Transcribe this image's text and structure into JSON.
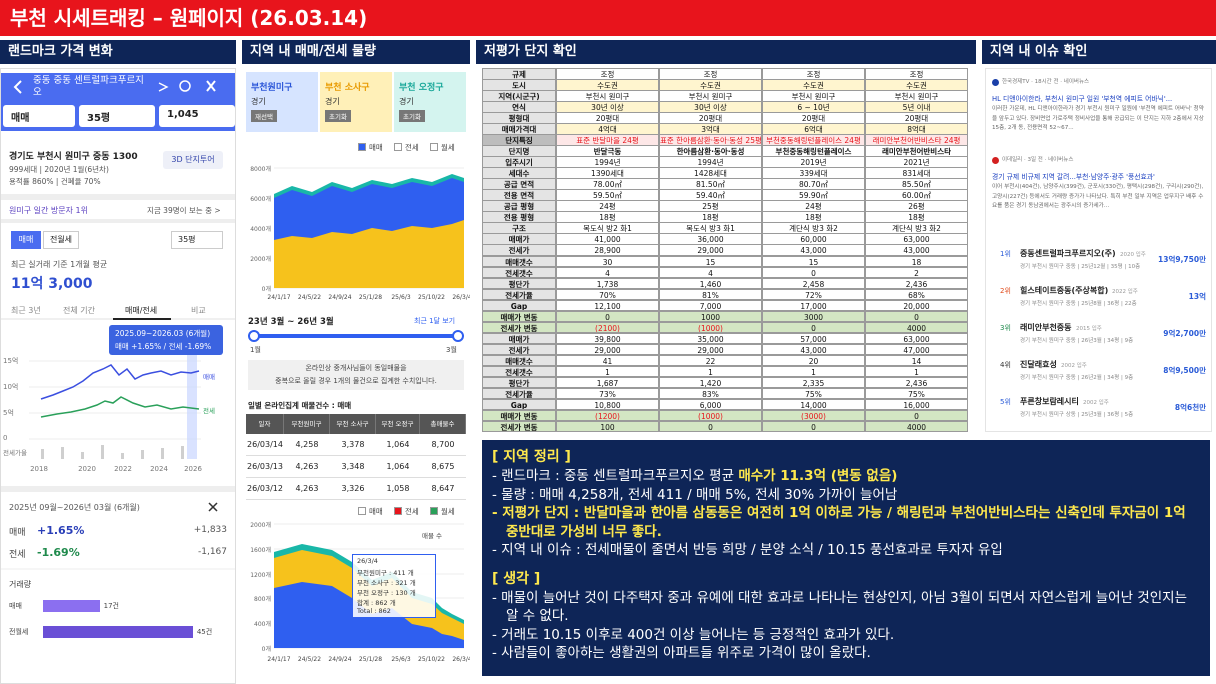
{
  "header": {
    "title": "부천 시세트래킹 – 원페이지 (26.03.14)"
  },
  "sections": [
    "랜드마크 가격 변화",
    "지역 내 매매/전세 물량",
    "저평가 단지 확인",
    "지역 내 이슈 확인"
  ],
  "landmark": {
    "app_title": "중동 중동 센트럴파크푸르지오",
    "filters": [
      "매매",
      "35평",
      "1,045"
    ],
    "address": "경기도 부천시 원미구 중동 1300",
    "info1": "999세대 | 2020년 1월(6년차)",
    "info2": "용적률 860% | 건폐율 70%",
    "tour": "3D 단지투어",
    "visitor": "원미구 일간 방문자 1위",
    "watching": "지금 39명이 보는 중 >",
    "tabs": [
      "매매",
      "전월세"
    ],
    "size": "35평",
    "avg_label": "최근 실거래 기준 1개월 평균",
    "avg_price": "11억 3,000",
    "chart_tabs": [
      "최근 3년",
      "전체 기간",
      "매매/전세",
      "비교"
    ],
    "tooltip": [
      "2025.09~2026.03 (6개월)",
      "매매 +1.65% / 전세 -1.69%"
    ],
    "yticks": [
      "15억",
      "10억",
      "5억",
      "0"
    ],
    "ratio_label": "전세가율",
    "xticks": [
      "2018",
      "2020",
      "2022",
      "2024",
      "2026"
    ],
    "line_labels": [
      "매매",
      "전세"
    ],
    "period": "2025년 09월~2026년 03월 (6개월)",
    "changes": [
      {
        "name": "매매",
        "pct": "+1.65%",
        "amount": "+1,833"
      },
      {
        "name": "전세",
        "pct": "-1.69%",
        "amount": "-1,167"
      }
    ],
    "volume_title": "거래량",
    "volume": [
      {
        "name": "매매",
        "value": 17,
        "label": "17건"
      },
      {
        "name": "전월세",
        "value": 45,
        "label": "45건"
      }
    ]
  },
  "supply": {
    "regions": [
      {
        "name": "부천원미구",
        "sub": "경기",
        "btn": "재선택"
      },
      {
        "name": "부천 소사구",
        "sub": "경기",
        "btn": "초기화"
      },
      {
        "name": "부천 오정구",
        "sub": "경기",
        "btn": "초기화"
      }
    ],
    "legend": [
      "매매",
      "전세",
      "월세"
    ],
    "chart1": {
      "yticks": [
        "8000개",
        "6000개",
        "4000개",
        "2000개",
        "0개"
      ],
      "xticks": [
        "24/1/17",
        "24/5/22",
        "24/9/24",
        "25/1/28",
        "25/6/3",
        "25/10/22",
        "26/3/4"
      ]
    },
    "range": "23년 3월 ~ 26년 3월",
    "recent": "최근 1달 보기",
    "slider_labels": [
      "1월",
      "3월"
    ],
    "notice": [
      "온라인상 중개사님들이 동일매물을",
      "중복으로 올릴 경우 1개의 물건으로 집계한 수치입니다."
    ],
    "table_title": "일별 온라인집계 매물건수 : 매매",
    "table_header": [
      "일자",
      "부천원미구",
      "부천 소사구",
      "부천 오정구",
      "총매물수"
    ],
    "table_rows": [
      [
        "26/03/14",
        "4,258",
        "3,378",
        "1,064",
        "8,700"
      ],
      [
        "26/03/13",
        "4,263",
        "3,348",
        "1,064",
        "8,675"
      ],
      [
        "26/03/12",
        "4,263",
        "3,326",
        "1,058",
        "8,647"
      ]
    ],
    "legend2": [
      "매매",
      "전세",
      "월세"
    ],
    "chart2": {
      "yticks": [
        "2000개",
        "1600개",
        "1200개",
        "800개",
        "400개",
        "0개"
      ],
      "xticks": [
        "24/1/17",
        "24/5/22",
        "24/9/24",
        "25/1/28",
        "25/6/3",
        "25/10/22",
        "26/3/4"
      ],
      "label": "매물 수",
      "tooltip": [
        "26/3/4",
        "부천원미구 : 411 개",
        "부천 소사구 : 321 개",
        "부천 오정구 : 130 개",
        "합계 : 862 개",
        "Total : 862"
      ]
    }
  },
  "undervalued": {
    "rows": [
      [
        "규제",
        "조정",
        "조정",
        "조정",
        "조정"
      ],
      [
        "도시",
        "수도권",
        "수도권",
        "수도권",
        "수도권"
      ],
      [
        "지역(시군구)",
        "부천시 원미구",
        "부천시 원미구",
        "부천시 원미구",
        "부천시 원미구"
      ],
      [
        "연식",
        "30년 이상",
        "30년 이상",
        "6 ~ 10년",
        "5년 이내"
      ],
      [
        "평형대",
        "20평대",
        "20평대",
        "20평대",
        "20평대"
      ],
      [
        "매매가격대",
        "4억대",
        "3억대",
        "6억대",
        "8억대"
      ],
      [
        "단지특징",
        "표준 반달마을 24평",
        "표준 한아름삼환·동아·동성 25평",
        "부천중동해링턴플레이스 24평",
        "래미안부천어반비스타 24평"
      ],
      [
        "단지명",
        "반달극동",
        "한아름삼환·동아·동성",
        "부천중동해링턴플레이스",
        "래미안부천어반비스타"
      ],
      [
        "입주시기",
        "1994년",
        "1994년",
        "2019년",
        "2021년"
      ],
      [
        "세대수",
        "1390세대",
        "1428세대",
        "339세대",
        "831세대"
      ],
      [
        "공급 면적",
        "78.00㎡",
        "81.50㎡",
        "80.70㎡",
        "85.50㎡"
      ],
      [
        "전용 면적",
        "59.50㎡",
        "59.40㎡",
        "59.90㎡",
        "60.00㎡"
      ],
      [
        "공급 평형",
        "24평",
        "25평",
        "24평",
        "26평"
      ],
      [
        "전용 평형",
        "18평",
        "18평",
        "18평",
        "18평"
      ],
      [
        "구조",
        "복도식 방2 화1",
        "복도식 방3 화1",
        "계단식 방3 화2",
        "계단식 방3 화2"
      ],
      [
        "매매가",
        "41,000",
        "36,000",
        "60,000",
        "63,000"
      ],
      [
        "전세가",
        "28,900",
        "29,000",
        "43,000",
        "43,000"
      ],
      [
        "매매갯수",
        "30",
        "15",
        "15",
        "18"
      ],
      [
        "전세갯수",
        "4",
        "4",
        "0",
        "2"
      ],
      [
        "평단가",
        "1,738",
        "1,460",
        "2,458",
        "2,436"
      ],
      [
        "전세가율",
        "70%",
        "81%",
        "72%",
        "68%"
      ],
      [
        "Gap",
        "12,100",
        "7,000",
        "17,000",
        "20,000"
      ],
      [
        "매매가 변동",
        "0",
        "1000",
        "3000",
        "0"
      ],
      [
        "전세가 변동",
        "(2100)",
        "(1000)",
        "0",
        "4000"
      ],
      [
        "매매가",
        "39,800",
        "35,000",
        "57,000",
        "63,000"
      ],
      [
        "전세가",
        "29,000",
        "29,000",
        "43,000",
        "47,000"
      ],
      [
        "매매갯수",
        "41",
        "22",
        "20",
        "14"
      ],
      [
        "전세갯수",
        "1",
        "1",
        "1",
        "1"
      ],
      [
        "평단가",
        "1,687",
        "1,420",
        "2,335",
        "2,436"
      ],
      [
        "전세가율",
        "73%",
        "83%",
        "75%",
        "75%"
      ],
      [
        "Gap",
        "10,800",
        "6,000",
        "14,000",
        "16,000"
      ],
      [
        "매매가 변동",
        "(1200)",
        "(1000)",
        "(3000)",
        "0"
      ],
      [
        "전세가 변동",
        "100",
        "0",
        "0",
        "4000"
      ]
    ]
  },
  "issues": {
    "news": [
      {
        "source": "한국경제TV · 18시간 전 · 네이버뉴스",
        "headline": "HL 디앤아이한라, 부천시 원미구 일원 '부천역 에피트 어바닉'...",
        "snippet": "이러한 가운데, HL 디앤아이한라가 경기 부천시 원미구 일원에 '부천역 에피트 어바닉' 청약을 앞두고 있다. 장비면업 가로주택 정비사업을 통해 공급되는 이 단지는 지하 2층에서 지상 15층, 2개 동, 전용면적 52~67..."
      },
      {
        "source": "이데일리 · 3일 전 · 네이버뉴스",
        "headline": "경기 규제 비규제 지역 갈려...부천·남양주·광주 '풍선효과'",
        "snippet": "이어 부천시(404건), 남양주시(399건), 군포시(330건), 평택시(298건), 구리시(290건), 고양시(227건) 등에서도 거래량 증가가 나타났다. 특히 부천 일부 지역은 업무지구 배후 수요를 품은 경기 동남권에서는 광주시의 증가세가..."
      }
    ],
    "ranks": [
      {
        "rank": "1위",
        "name": "중동센트럴파크푸르지오(주)",
        "year": "2020 입주",
        "detail": "경기 부천시 원미구 중동 | 25년12월 | 35평 | 10층",
        "price": "13억9,750만"
      },
      {
        "rank": "2위",
        "name": "힐스테이트중동(주상복합)",
        "year": "2022 입주",
        "detail": "경기 부천시 원미구 중동 | 25년8월 | 36평 | 22층",
        "price": "13억"
      },
      {
        "rank": "3위",
        "name": "래미안부천중동",
        "year": "2015 입주",
        "detail": "경기 부천시 원미구 중동 | 26년3월 | 34평 | 9층",
        "price": "9억2,700만"
      },
      {
        "rank": "4위",
        "name": "진달래효성",
        "year": "2002 입주",
        "detail": "경기 부천시 원미구 중동 | 26년2월 | 34평 | 9층",
        "price": "8억9,500만"
      },
      {
        "rank": "5위",
        "name": "푸른창보람레시티",
        "year": "2002 입주",
        "detail": "경기 부천시 원미구 상동 | 25년3월 | 36평 | 5층",
        "price": "8억6천만"
      }
    ]
  },
  "summary": [
    {
      "title": "[ 지역 정리 ]",
      "items": [
        [
          {
            "text": "- 랜드마크 : 중동 센트럴파크푸르지오 평균 ",
            "color": "#ffffff"
          },
          {
            "text": "매수가 11.3억 (변동 없음)",
            "color": "#ffe94d"
          }
        ],
        [
          {
            "text": "- 물량 : 매매 4,258개, 전세 411 / 매매 5%, 전세 30% 가까이 늘어남",
            "color": "#ffffff"
          }
        ],
        [
          {
            "text": "- 저평가 단지 : 반달마을과 한아름 삼동동은 여전히 1억 이하로 가능 / 해링턴과 부천어반비스타는 신축인데 투자금이 1억 중반대로 가성비 너무 좋다.",
            "color": "#ffe94d"
          }
        ],
        [
          {
            "text": "- 지역 내 이슈 : 전세매물이 줄면서 반등 희망 / 분양 소식 / 10.15 풍선효과로 투자자 유입",
            "color": "#ffffff"
          }
        ]
      ]
    },
    {
      "title": "[ 생각 ]",
      "items": [
        [
          {
            "text": "- 매물이 늘어난 것이 다주택자 중과 유예에 대한 효과로 나타나는 현상인지, 아님 3월이 되면서 자연스럽게 늘어난 것인지는 알 수 없다.",
            "color": "#ffffff"
          }
        ],
        [
          {
            "text": "- 거래도 10.15 이후로 400건 이상 늘어나는 등 긍정적인 효과가 있다.",
            "color": "#ffffff"
          }
        ],
        [
          {
            "text": "- 사람들이 좋아하는 생활권의 아파트들 위주로 가격이 많이 올랐다.",
            "color": "#ffffff"
          }
        ]
      ]
    }
  ]
}
